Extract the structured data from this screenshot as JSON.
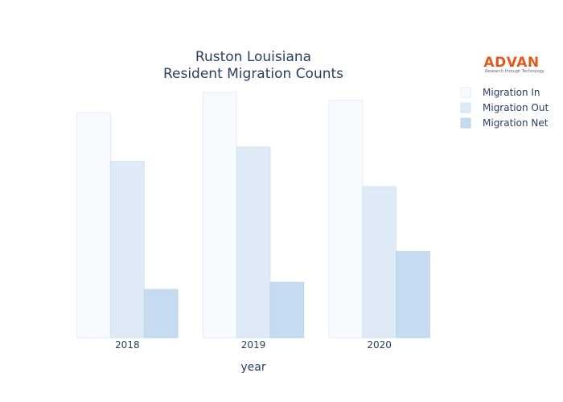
{
  "chart_data": {
    "type": "bar",
    "title_lines": [
      "Ruston Louisiana",
      "Resident Migration Counts"
    ],
    "xlabel": "year",
    "ylabel": "",
    "categories": [
      "2018",
      "2019",
      "2020"
    ],
    "ylim": [
      0,
      310
    ],
    "grid": false,
    "legend_position": "top-right",
    "series": [
      {
        "name": "Migration In",
        "values": [
          284,
          310,
          300
        ],
        "color": "#f7fbff",
        "stroke": "#e3ecf7"
      },
      {
        "name": "Migration Out",
        "values": [
          223,
          241,
          191
        ],
        "color": "#deebf7",
        "stroke": "#d3e2f2"
      },
      {
        "name": "Migration Net",
        "values": [
          61,
          70,
          109
        ],
        "color": "#c6dbef",
        "stroke": "#bcd3ea"
      }
    ]
  },
  "logo": {
    "name": "ADVAN",
    "tagline": "Research through Technology"
  }
}
